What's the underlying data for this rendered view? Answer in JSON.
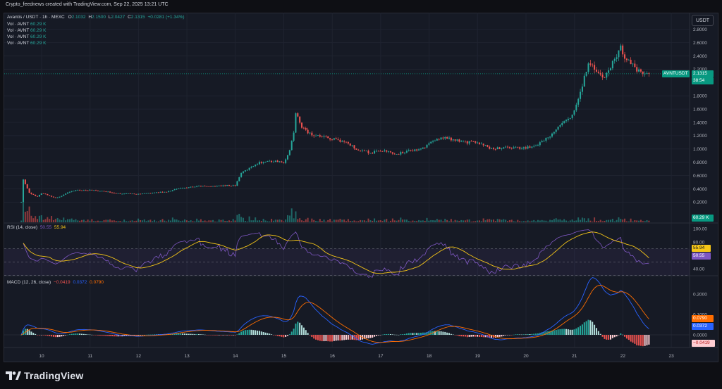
{
  "top_caption": "Crypto_feednews created with TradingView.com, Sep 22, 2025 13:21 UTC",
  "legend": {
    "symbol": "Avantis / USDT · 1h · MEXC",
    "o_label": "O",
    "o": "2.1032",
    "h_label": "H",
    "h": "2.1500",
    "l_label": "L",
    "l": "2.0427",
    "c_label": "C",
    "c": "2.1315",
    "change": "+0.0281 (+1.34%)",
    "vol_rows": [
      {
        "label": "Vol · AVNT",
        "value": "60.29 K"
      },
      {
        "label": "Vol · AVNT",
        "value": "60.29 K"
      },
      {
        "label": "Vol · AVNT",
        "value": "60.29 K"
      },
      {
        "label": "Vol · AVNT",
        "value": "60.29 K"
      }
    ]
  },
  "currency_button": "USDT",
  "price_axis": [
    "2.8000",
    "2.6000",
    "2.4000",
    "2.2000",
    "1.8000",
    "1.6000",
    "1.4000",
    "1.2000",
    "1.0000",
    "0.8000",
    "0.6000",
    "0.4000",
    "0.2000"
  ],
  "price_tag": {
    "symbol": "AVNTUSDT",
    "price": "2.1315",
    "countdown": "38:54"
  },
  "volume_tag": "60.29 K",
  "rsi": {
    "title": "RSI (14, close)",
    "rsi_value": "50.55",
    "ma_value": "55.94",
    "axis": [
      "100.00",
      "80.00",
      "40.00"
    ]
  },
  "macd": {
    "title": "MACD (12, 26, close)",
    "hist_value": "−0.0419",
    "macd_value": "0.0372",
    "signal_value": "0.0790",
    "axis": [
      "0.2000",
      "0.1000",
      "0.0000"
    ]
  },
  "time_axis": [
    "10",
    "11",
    "12",
    "13",
    "14",
    "15",
    "16",
    "17",
    "18",
    "19",
    "20",
    "21",
    "22",
    "23"
  ],
  "brand": "TradingView",
  "colors": {
    "up": "#26a69a",
    "down": "#ef5350",
    "rsi_line": "#7e57c2",
    "rsi_ma": "#f5c518",
    "macd_line": "#2962ff",
    "signal_line": "#ff6d00",
    "price_tag": "#089981"
  },
  "chart_data": {
    "type": "line",
    "x": [
      "10",
      "11",
      "12",
      "13",
      "14",
      "15",
      "16",
      "17",
      "18",
      "19",
      "20",
      "21",
      "22",
      "22.6"
    ],
    "series": [
      {
        "values": [
          0.34,
          0.38,
          0.32,
          0.42,
          0.45,
          0.82,
          1.15,
          0.98,
          1.08,
          1.1,
          1.02,
          1.6,
          2.35,
          2.13
        ]
      }
    ],
    "ylim": [
      0,
      2.9
    ]
  }
}
